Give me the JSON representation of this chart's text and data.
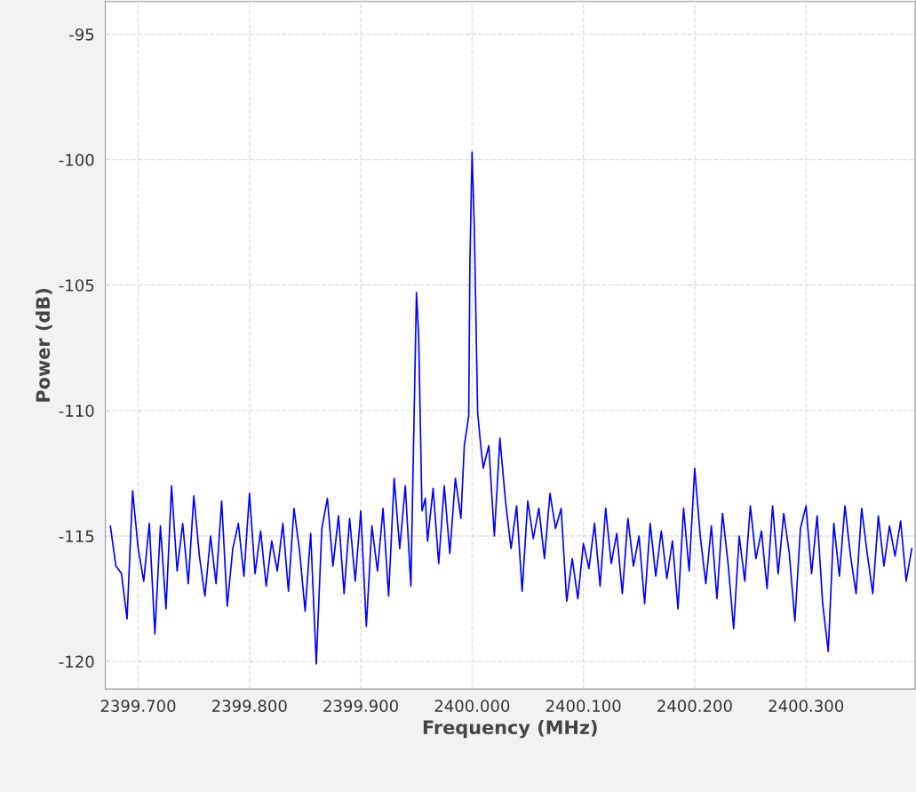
{
  "chart_data": {
    "type": "line",
    "xlabel": "Frequency (MHz)",
    "ylabel": "Power (dB)",
    "x": [
      2399.675,
      2399.68,
      2399.685,
      2399.69,
      2399.695,
      2399.7,
      2399.705,
      2399.71,
      2399.715,
      2399.72,
      2399.725,
      2399.73,
      2399.735,
      2399.74,
      2399.745,
      2399.75,
      2399.755,
      2399.76,
      2399.765,
      2399.77,
      2399.775,
      2399.78,
      2399.785,
      2399.79,
      2399.795,
      2399.8,
      2399.805,
      2399.81,
      2399.815,
      2399.82,
      2399.825,
      2399.83,
      2399.835,
      2399.84,
      2399.845,
      2399.85,
      2399.855,
      2399.86,
      2399.865,
      2399.87,
      2399.875,
      2399.88,
      2399.885,
      2399.89,
      2399.895,
      2399.9,
      2399.905,
      2399.91,
      2399.915,
      2399.92,
      2399.925,
      2399.93,
      2399.935,
      2399.94,
      2399.945,
      2399.948,
      2399.95,
      2399.952,
      2399.955,
      2399.958,
      2399.96,
      2399.965,
      2399.97,
      2399.975,
      2399.98,
      2399.985,
      2399.99,
      2399.993,
      2399.997,
      2399.998,
      2400.0,
      2400.002,
      2400.005,
      2400.008,
      2400.01,
      2400.015,
      2400.02,
      2400.025,
      2400.03,
      2400.035,
      2400.04,
      2400.045,
      2400.05,
      2400.055,
      2400.06,
      2400.065,
      2400.07,
      2400.075,
      2400.08,
      2400.085,
      2400.09,
      2400.095,
      2400.1,
      2400.105,
      2400.11,
      2400.115,
      2400.12,
      2400.125,
      2400.13,
      2400.135,
      2400.14,
      2400.145,
      2400.15,
      2400.155,
      2400.16,
      2400.165,
      2400.17,
      2400.175,
      2400.18,
      2400.185,
      2400.19,
      2400.195,
      2400.2,
      2400.205,
      2400.21,
      2400.215,
      2400.22,
      2400.225,
      2400.23,
      2400.235,
      2400.24,
      2400.245,
      2400.25,
      2400.255,
      2400.26,
      2400.265,
      2400.27,
      2400.275,
      2400.28,
      2400.285,
      2400.29,
      2400.295,
      2400.3,
      2400.305,
      2400.31,
      2400.315,
      2400.32,
      2400.325,
      2400.33,
      2400.335,
      2400.34,
      2400.345,
      2400.35,
      2400.355,
      2400.36,
      2400.365,
      2400.37,
      2400.375,
      2400.38,
      2400.385,
      2400.39,
      2400.395
    ],
    "series": [
      {
        "color": "#0000ff",
        "values": [
          -114.6,
          -116.2,
          -116.5,
          -118.3,
          -113.2,
          -115.5,
          -116.8,
          -114.5,
          -118.9,
          -114.6,
          -117.9,
          -113.0,
          -116.4,
          -114.5,
          -116.9,
          -113.4,
          -115.8,
          -117.4,
          -115.0,
          -116.9,
          -113.6,
          -117.8,
          -115.5,
          -114.5,
          -116.6,
          -113.3,
          -116.5,
          -114.8,
          -117.0,
          -115.2,
          -116.4,
          -114.5,
          -117.2,
          -113.9,
          -115.6,
          -118.0,
          -114.9,
          -120.1,
          -114.7,
          -113.5,
          -116.2,
          -114.2,
          -117.3,
          -114.3,
          -116.8,
          -114.0,
          -118.6,
          -114.6,
          -116.4,
          -113.9,
          -117.4,
          -112.7,
          -115.5,
          -113.0,
          -117.0,
          -110.0,
          -105.3,
          -107.0,
          -114.0,
          -113.5,
          -115.2,
          -113.1,
          -116.1,
          -113.0,
          -115.7,
          -112.7,
          -114.3,
          -111.4,
          -110.2,
          -104.2,
          -99.7,
          -102.7,
          -110.1,
          -111.5,
          -112.3,
          -111.4,
          -115.0,
          -111.1,
          -113.6,
          -115.5,
          -113.8,
          -117.2,
          -113.6,
          -115.1,
          -113.9,
          -115.9,
          -113.3,
          -114.7,
          -113.9,
          -117.6,
          -115.9,
          -117.5,
          -115.3,
          -116.3,
          -114.5,
          -117.0,
          -113.9,
          -116.1,
          -114.9,
          -117.3,
          -114.3,
          -116.2,
          -115.0,
          -117.7,
          -114.5,
          -116.6,
          -114.8,
          -116.7,
          -115.2,
          -117.9,
          -113.9,
          -116.4,
          -112.3,
          -115.0,
          -116.9,
          -114.6,
          -117.5,
          -114.1,
          -116.1,
          -118.7,
          -115.0,
          -116.8,
          -113.8,
          -115.9,
          -114.8,
          -117.1,
          -113.8,
          -116.5,
          -114.1,
          -115.7,
          -118.4,
          -114.7,
          -113.8,
          -116.5,
          -114.2,
          -117.7,
          -119.6,
          -114.5,
          -116.6,
          -113.8,
          -115.8,
          -117.3,
          -113.9,
          -115.7,
          -117.3,
          -114.2,
          -116.2,
          -114.6,
          -115.8,
          -114.4,
          -116.8,
          -115.5
        ]
      }
    ],
    "xlim": [
      2399.6705,
      2400.398
    ],
    "xticks": [
      {
        "value": 2399.7,
        "label": "2399.700"
      },
      {
        "value": 2399.8,
        "label": "2399.800"
      },
      {
        "value": 2399.9,
        "label": "2399.900"
      },
      {
        "value": 2400.0,
        "label": "2400.000"
      },
      {
        "value": 2400.1,
        "label": "2400.100"
      },
      {
        "value": 2400.2,
        "label": "2400.200"
      },
      {
        "value": 2400.3,
        "label": "2400.300"
      }
    ],
    "ylim": [
      -121.1,
      -93.7
    ],
    "yticks": [
      -120,
      -115,
      -110,
      -105,
      -100,
      -95
    ],
    "grid": true,
    "legend": false
  }
}
